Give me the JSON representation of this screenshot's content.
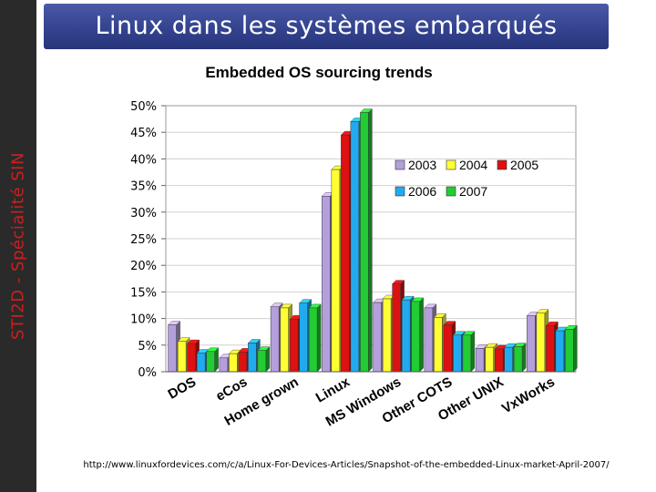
{
  "sidebar": {
    "text": "STI2D  -  Spécialité SIN"
  },
  "banner": {
    "title": "Linux dans les systèmes embarqués"
  },
  "footer": {
    "url": "http://www.linuxfordevices.com/c/a/Linux-For-Devices-Articles/Snapshot-of-the-embedded-Linux-market-April-2007/"
  },
  "colors": {
    "banner": "#34438f",
    "sidebar": "#2a2a2a",
    "sidebar_text": "#cc1f1f"
  },
  "chart_data": {
    "type": "bar",
    "title": "Embedded OS sourcing trends",
    "categories": [
      "DOS",
      "eCos",
      "Home grown",
      "Linux",
      "MS Windows",
      "Other COTS",
      "Other UNIX",
      "VxWorks"
    ],
    "yticks": [
      "0%",
      "5%",
      "10%",
      "15%",
      "20%",
      "25%",
      "30%",
      "35%",
      "40%",
      "45%",
      "50%"
    ],
    "ylim": [
      0,
      50
    ],
    "series": [
      {
        "name": "2003",
        "color": "#b49fdc",
        "values": [
          8.8,
          2.6,
          12.2,
          33.0,
          13.0,
          12.0,
          4.4,
          10.5
        ]
      },
      {
        "name": "2004",
        "color": "#ffff33",
        "values": [
          5.7,
          3.4,
          12.0,
          38.0,
          13.7,
          10.2,
          4.6,
          11.0
        ]
      },
      {
        "name": "2005",
        "color": "#dd1111",
        "values": [
          5.3,
          3.7,
          9.9,
          44.5,
          16.5,
          8.8,
          4.3,
          8.7
        ]
      },
      {
        "name": "2006",
        "color": "#22aaee",
        "values": [
          3.5,
          5.4,
          12.9,
          47.0,
          13.5,
          6.9,
          4.6,
          7.7
        ]
      },
      {
        "name": "2007",
        "color": "#22cc33",
        "values": [
          3.8,
          4.0,
          12.0,
          48.7,
          13.2,
          6.9,
          4.7,
          8.0
        ]
      }
    ]
  }
}
